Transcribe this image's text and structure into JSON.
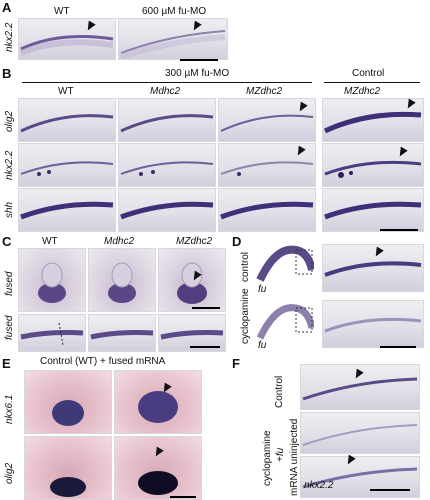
{
  "panels": {
    "A": {
      "letter": "A",
      "row_label": "nkx2.2",
      "col_wt": "WT",
      "col_mo": "600 µM fu-MO"
    },
    "B": {
      "letter": "B",
      "header_mo": "300 µM fu-MO",
      "header_control": "Control",
      "col_wt": "WT",
      "col_m": "Mdhc2",
      "col_mz": "MZdhc2",
      "col_control_mz": "MZdhc2",
      "rows": [
        "olig2",
        "nkx2.2",
        "shh"
      ]
    },
    "C": {
      "letter": "C",
      "col_wt": "WT",
      "col_m": "Mdhc2",
      "col_mz": "MZdhc2",
      "row_top": "fused",
      "row_bottom": "fused"
    },
    "D": {
      "letter": "D",
      "side_control": "control",
      "side_cyclopamine": "cyclopamine",
      "tag_top": "fu",
      "tag_bottom": "fu"
    },
    "E": {
      "letter": "E",
      "title": "Control (WT) + fused mRNA",
      "row_top": "nkx6.1",
      "row_bottom": "olig2"
    },
    "F": {
      "letter": "F",
      "side_control": "Control",
      "side_cyclopamine": "cyclopamine",
      "side_fu": "+fu",
      "side_mrna": "mRNA uninjected",
      "tag_bottom": "nkx2.2"
    }
  }
}
